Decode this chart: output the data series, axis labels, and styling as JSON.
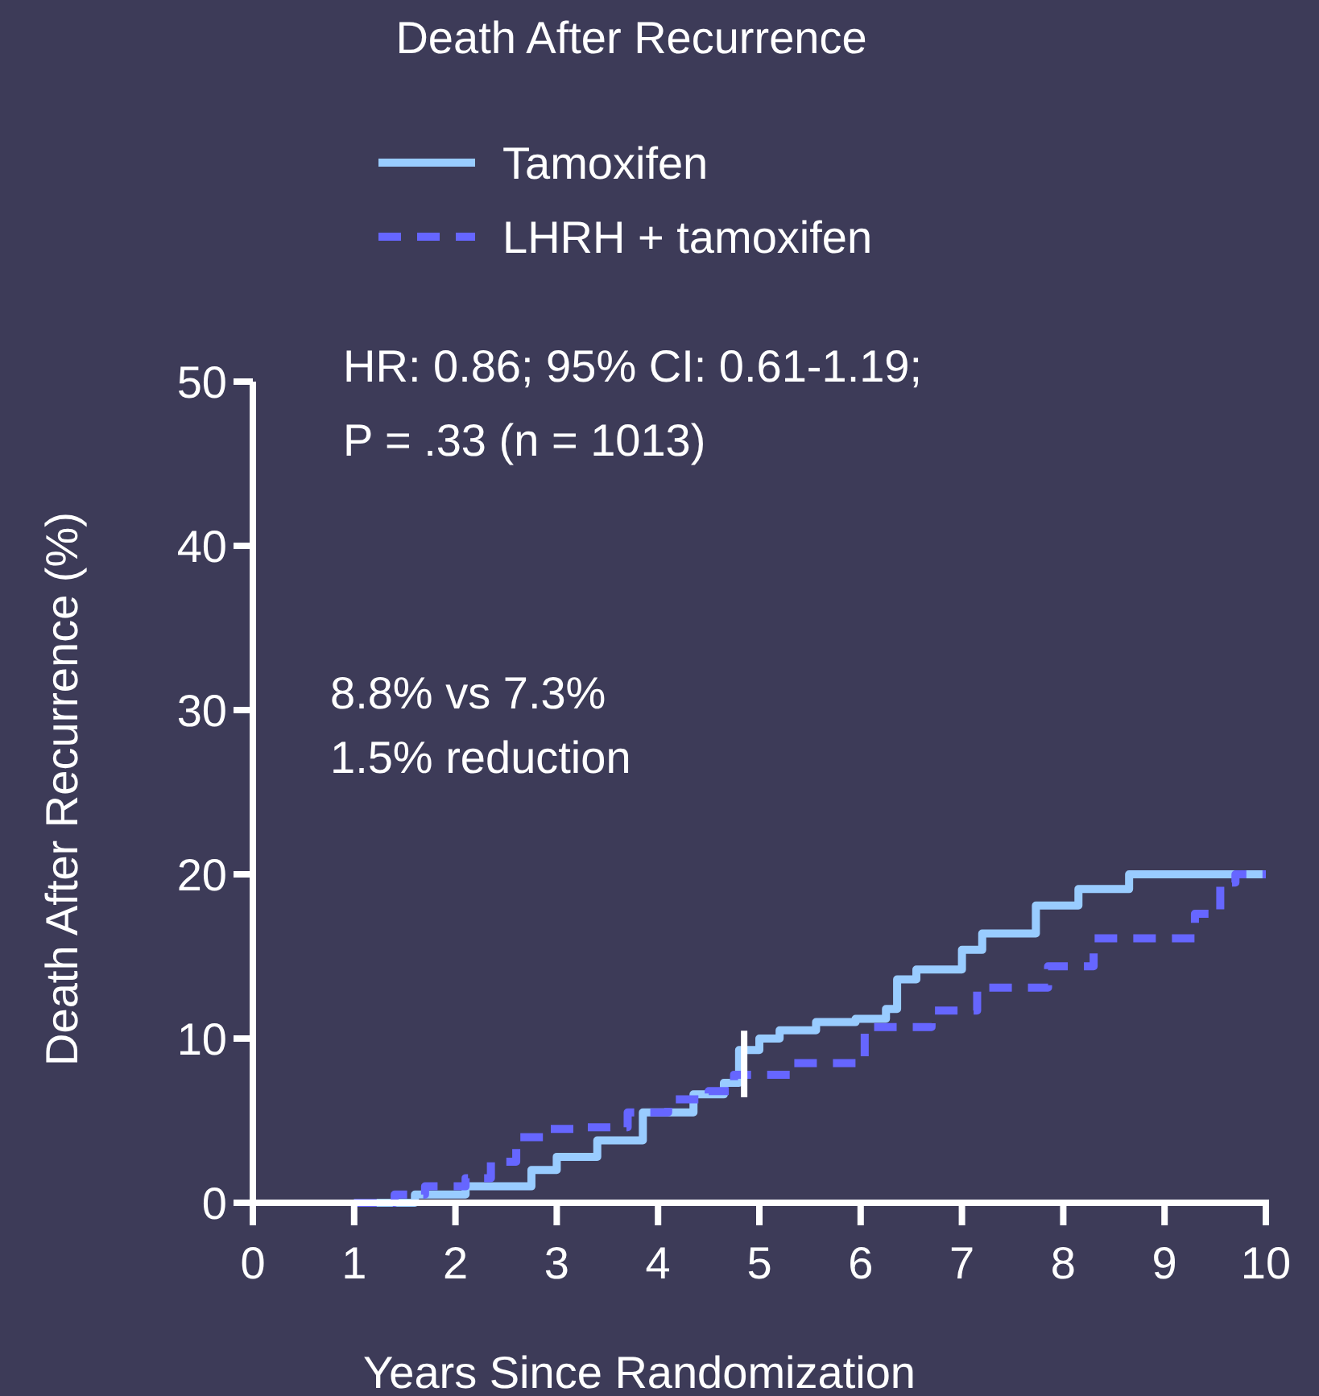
{
  "chart_data": {
    "type": "step",
    "title": "Death After Recurrence",
    "xlabel": "Years Since Randomization",
    "ylabel": "Death After Recurrence (%)",
    "annotations": [
      "HR: 0.86; 95% CI: 0.61-1.19;",
      "P = .33 (n = 1013)",
      "8.8% vs 7.3%",
      "1.5% reduction"
    ],
    "xlim": [
      0,
      10
    ],
    "ylim": [
      0,
      50
    ],
    "xticks": [
      0,
      1,
      2,
      3,
      4,
      5,
      6,
      7,
      8,
      9,
      10
    ],
    "yticks": [
      0,
      10,
      20,
      30,
      40,
      50
    ],
    "legend": "top",
    "grid": false,
    "ref_lines": [
      {
        "axis": "x",
        "value": 4.85,
        "color": "#ffffff"
      }
    ],
    "series": [
      {
        "name": "Tamoxifen",
        "color": "#99ccff",
        "line_style": "solid",
        "x": [
          1.0,
          1.6,
          2.1,
          2.75,
          3.0,
          3.4,
          3.85,
          4.35,
          4.65,
          4.8,
          5.0,
          5.2,
          5.56,
          5.95,
          6.25,
          6.36,
          6.55,
          7.0,
          7.2,
          7.6,
          7.73,
          8.15,
          8.65,
          10
        ],
        "values": [
          0,
          0.5,
          1,
          2,
          2.8,
          3.8,
          5.5,
          6.6,
          7.3,
          9.3,
          10,
          10.5,
          11,
          11.2,
          11.8,
          13.6,
          14.2,
          15.4,
          16.4,
          16.4,
          18.1,
          19.1,
          20,
          20
        ]
      },
      {
        "name": "LHRH + tamoxifen",
        "color": "#6666ff",
        "line_style": "dashed",
        "x": [
          1.0,
          1.4,
          1.7,
          2.1,
          2.35,
          2.6,
          2.9,
          3.3,
          3.7,
          4.1,
          4.5,
          4.75,
          5.3,
          6.04,
          6.7,
          7.15,
          7.85,
          8.3,
          9.3,
          9.55,
          9.7,
          10
        ],
        "values": [
          0,
          0.5,
          1,
          1.5,
          2.5,
          4,
          4.5,
          4.6,
          5.5,
          6.3,
          6.8,
          7.8,
          8.5,
          10.7,
          11.7,
          13.1,
          14.4,
          16.1,
          17.6,
          19.5,
          20,
          20
        ]
      }
    ]
  }
}
